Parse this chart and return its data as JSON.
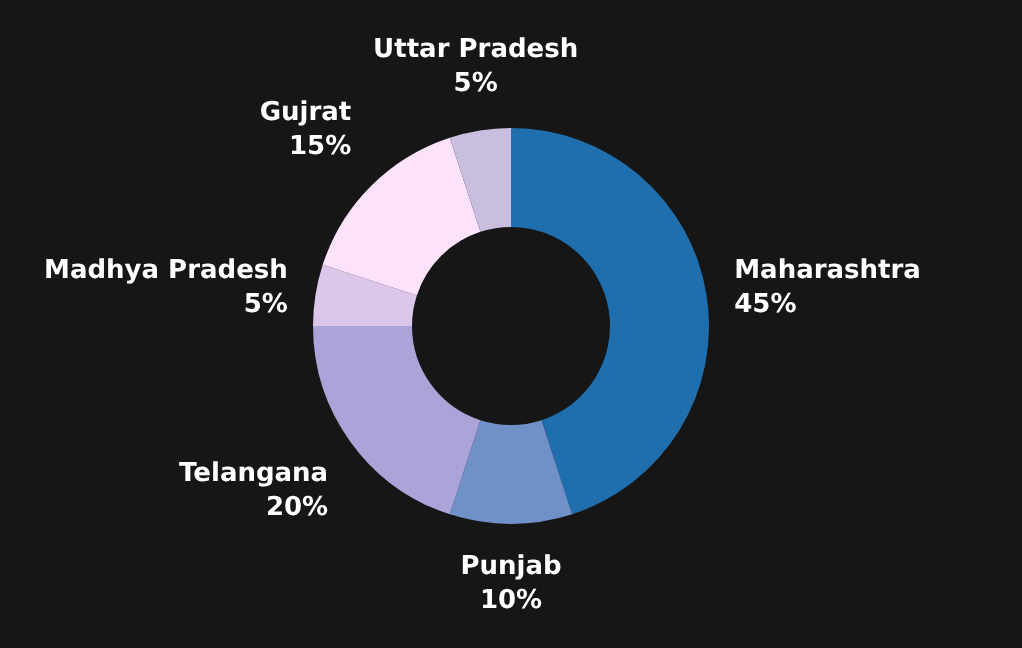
{
  "chart_data": {
    "type": "donut",
    "categories": [
      "Maharashtra",
      "Punjab",
      "Telangana",
      "Madhya Pradesh",
      "Gujrat",
      "Uttar Pradesh"
    ],
    "values": [
      45,
      10,
      20,
      5,
      15,
      5
    ],
    "value_labels": [
      "45%",
      "10%",
      "20%",
      "5%",
      "15%",
      "5%"
    ],
    "colors": [
      "#1f6fae",
      "#7090c8",
      "#aba4d8",
      "#dcc6ea",
      "#fde2fb",
      "#c9bee0"
    ],
    "legend": false
  }
}
